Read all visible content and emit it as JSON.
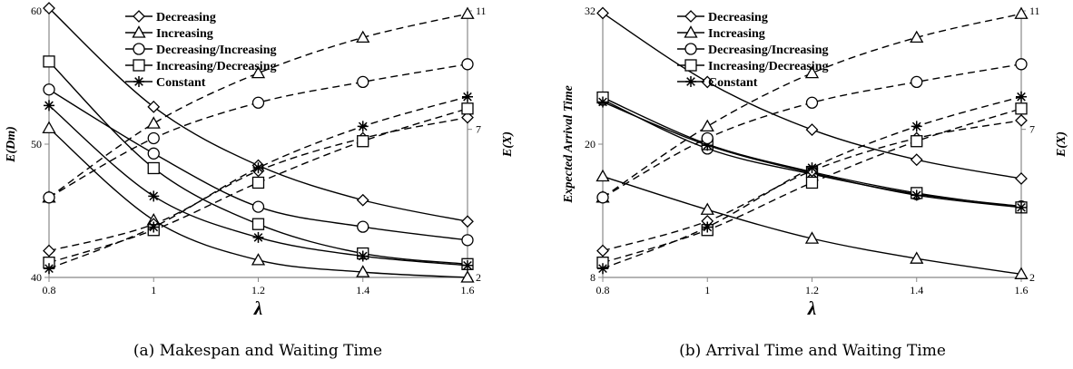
{
  "chart_data": [
    {
      "type": "line",
      "caption": "(a) Makespan and Waiting Time",
      "xlabel": "λ",
      "ylabel": "E(Dm)",
      "y2label": "E(X)",
      "x": [
        0.8,
        1,
        1.2,
        1.4,
        1.6
      ],
      "x_ticks": [
        "0.8",
        "1",
        "1.2",
        "1.4",
        "1.6"
      ],
      "ylim": [
        40,
        60
      ],
      "y_ticks": [
        "40",
        "50",
        "60"
      ],
      "y2lim": [
        2,
        11
      ],
      "y2_ticks": [
        "2",
        "7",
        "11"
      ],
      "legend_position": "top-center",
      "legend": [
        "Decreasing",
        "Increasing",
        "Decreasing/Increasing",
        "Increasing/Decreasing",
        "Constant"
      ],
      "series": [
        {
          "name": "Decreasing",
          "marker": "diamond",
          "axis": "left",
          "values": [
            60.2,
            52.8,
            48.4,
            45.8,
            44.2
          ]
        },
        {
          "name": "Increasing",
          "marker": "triangle",
          "axis": "left",
          "values": [
            51.2,
            44.3,
            41.3,
            40.4,
            40.0
          ]
        },
        {
          "name": "Decreasing/Increasing",
          "marker": "circle",
          "axis": "left",
          "values": [
            54.1,
            49.3,
            45.3,
            43.8,
            42.8
          ]
        },
        {
          "name": "Increasing/Decreasing",
          "marker": "square",
          "axis": "left",
          "values": [
            56.2,
            48.2,
            44.0,
            41.8,
            41.0
          ]
        },
        {
          "name": "Constant",
          "marker": "asterisk",
          "axis": "left",
          "values": [
            52.9,
            46.1,
            43.0,
            41.6,
            40.9
          ]
        },
        {
          "name": "Decreasing",
          "marker": "diamond",
          "axis": "right",
          "values": [
            2.9,
            3.8,
            5.6,
            6.7,
            7.4
          ]
        },
        {
          "name": "Increasing",
          "marker": "triangle",
          "axis": "right",
          "values": [
            4.7,
            7.2,
            8.9,
            10.1,
            10.9
          ]
        },
        {
          "name": "Decreasing/Increasing",
          "marker": "circle",
          "axis": "right",
          "values": [
            4.7,
            6.7,
            7.9,
            8.6,
            9.2
          ]
        },
        {
          "name": "Increasing/Decreasing",
          "marker": "square",
          "axis": "right",
          "values": [
            2.5,
            3.6,
            5.2,
            6.6,
            7.7
          ]
        },
        {
          "name": "Constant",
          "marker": "asterisk",
          "axis": "right",
          "values": [
            2.3,
            3.7,
            5.7,
            7.1,
            8.1
          ]
        }
      ]
    },
    {
      "type": "line",
      "caption": "(b) Arrival Time and Waiting Time",
      "xlabel": "λ",
      "ylabel": "Expected Arrival Time",
      "y2label": "E(X)",
      "x": [
        0.8,
        1,
        1.2,
        1.4,
        1.6
      ],
      "x_ticks": [
        "0.8",
        "1",
        "1.2",
        "1.4",
        "1.6"
      ],
      "ylim": [
        8,
        32
      ],
      "y_ticks": [
        "8",
        "20",
        "32"
      ],
      "y2lim": [
        2,
        11
      ],
      "y2_ticks": [
        "2",
        "7",
        "11"
      ],
      "legend_position": "top-center",
      "legend": [
        "Decreasing",
        "Increasing",
        "Decreasing/Increasing",
        "Increasing/Decreasing",
        "Constant"
      ],
      "series": [
        {
          "name": "Decreasing",
          "marker": "diamond",
          "axis": "left",
          "values": [
            31.8,
            25.6,
            21.3,
            18.6,
            16.9
          ]
        },
        {
          "name": "Increasing",
          "marker": "triangle",
          "axis": "left",
          "values": [
            17.1,
            14.1,
            11.5,
            9.7,
            8.3
          ]
        },
        {
          "name": "Decreasing/Increasing",
          "marker": "circle",
          "axis": "left",
          "values": [
            24.0,
            19.6,
            17.3,
            15.5,
            14.4
          ]
        },
        {
          "name": "Increasing/Decreasing",
          "marker": "square",
          "axis": "left",
          "values": [
            24.2,
            20.0,
            17.5,
            15.6,
            14.3
          ]
        },
        {
          "name": "Constant",
          "marker": "asterisk",
          "axis": "left",
          "values": [
            23.8,
            19.9,
            17.4,
            15.4,
            14.3
          ]
        },
        {
          "name": "Decreasing",
          "marker": "diamond",
          "axis": "right",
          "values": [
            2.9,
            3.9,
            5.6,
            6.7,
            7.3
          ]
        },
        {
          "name": "Increasing",
          "marker": "triangle",
          "axis": "right",
          "values": [
            4.7,
            7.1,
            8.9,
            10.1,
            10.9
          ]
        },
        {
          "name": "Decreasing/Increasing",
          "marker": "circle",
          "axis": "right",
          "values": [
            4.7,
            6.7,
            7.9,
            8.6,
            9.2
          ]
        },
        {
          "name": "Increasing/Decreasing",
          "marker": "square",
          "axis": "right",
          "values": [
            2.5,
            3.6,
            5.2,
            6.6,
            7.7
          ]
        },
        {
          "name": "Constant",
          "marker": "asterisk",
          "axis": "right",
          "values": [
            2.3,
            3.7,
            5.7,
            7.1,
            8.1
          ]
        }
      ]
    }
  ]
}
